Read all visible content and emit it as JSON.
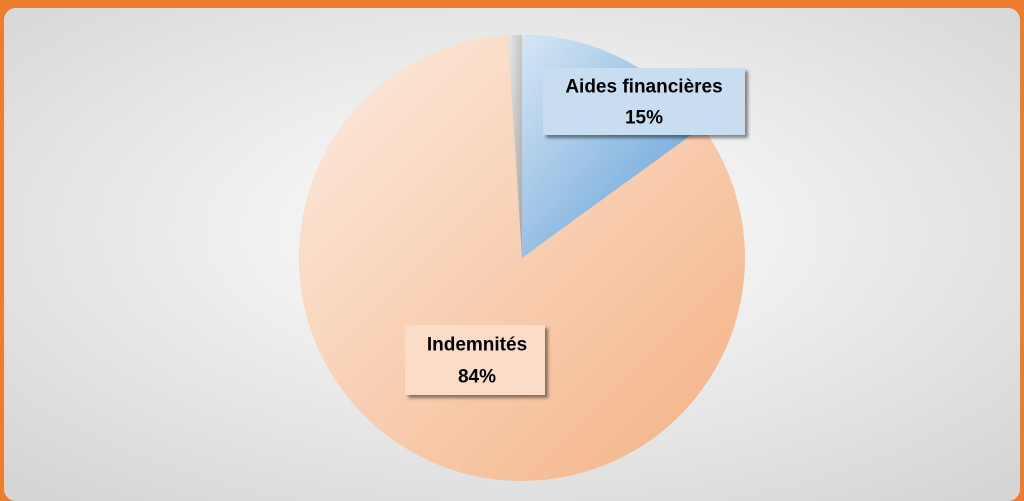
{
  "chart_data": {
    "type": "pie",
    "categories": [
      "Aides financières",
      "Indemnités",
      null
    ],
    "values": [
      15,
      84,
      1
    ],
    "value_labels": [
      "15%",
      "84%",
      null
    ],
    "colors": [
      "#5b9bd5",
      "#f4b183",
      "#a5a5a5"
    ]
  }
}
